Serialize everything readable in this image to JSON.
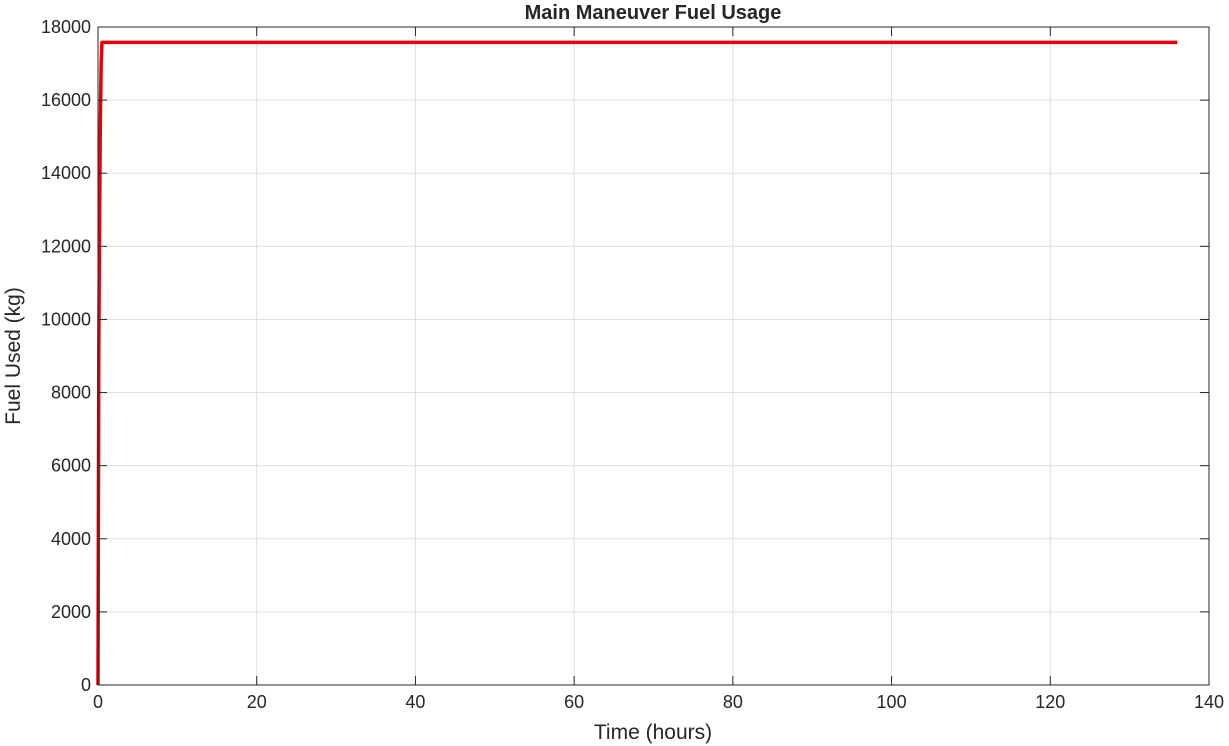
{
  "chart_data": {
    "type": "line",
    "title": "Main Maneuver Fuel Usage",
    "xlabel": "Time (hours)",
    "ylabel": "Fuel Used (kg)",
    "xlim": [
      0,
      140
    ],
    "ylim": [
      0,
      18000
    ],
    "xticks": [
      0,
      20,
      40,
      60,
      80,
      100,
      120,
      140
    ],
    "yticks": [
      0,
      2000,
      4000,
      6000,
      8000,
      10000,
      12000,
      14000,
      16000,
      18000
    ],
    "xtick_labels": [
      "0",
      "20",
      "40",
      "60",
      "80",
      "100",
      "120",
      "140"
    ],
    "ytick_labels": [
      "0",
      "2000",
      "4000",
      "6000",
      "8000",
      "10000",
      "12000",
      "14000",
      "16000",
      "18000"
    ],
    "grid": true,
    "series": [
      {
        "color": "#e8000b",
        "x": [
          0,
          0.05,
          0.1,
          0.2,
          0.3,
          0.4,
          0.5,
          136
        ],
        "y": [
          0,
          4600,
          9000,
          13000,
          15500,
          17000,
          17580,
          17580
        ]
      }
    ]
  }
}
